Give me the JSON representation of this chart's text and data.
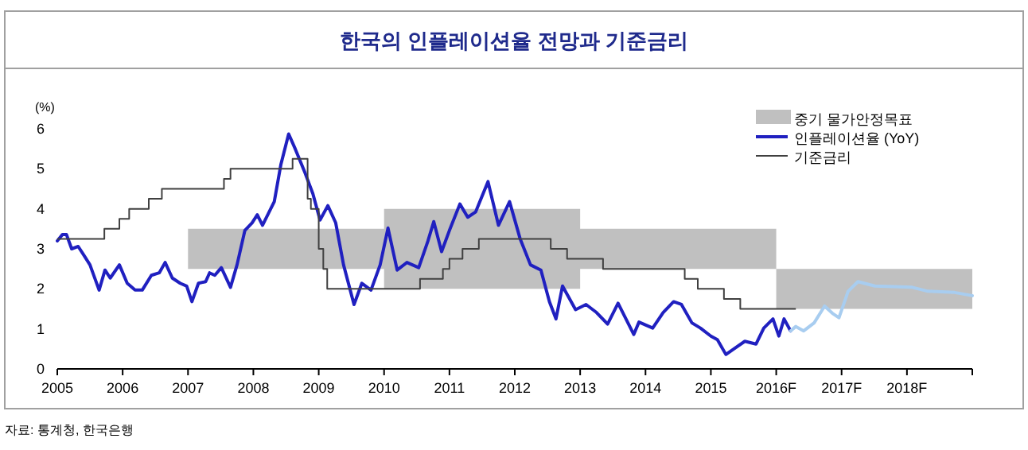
{
  "chart_data": {
    "type": "line",
    "title": "한국의 인플레이션율 전망과 기준금리",
    "ylabel": "(%)",
    "annotations": [
      "자료: 통계청, 한국은행"
    ],
    "xlim": [
      2005,
      2019
    ],
    "xticks": [
      2005,
      2006,
      2007,
      2008,
      2009,
      2010,
      2011,
      2012,
      2013,
      2014,
      2015,
      {
        "value": 2016,
        "label": "2016F"
      },
      {
        "value": 2017,
        "label": "2017F"
      },
      {
        "value": 2018,
        "label": "2018F"
      },
      {
        "value": 2019,
        "label": null
      }
    ],
    "ylim": [
      0,
      6
    ],
    "yticks": [
      0,
      1,
      2,
      3,
      4,
      5,
      6
    ],
    "grid": false,
    "legend": "top right",
    "series": [
      {
        "name": "중기 물가안정목표",
        "type": "line",
        "color": "#c0c0c0",
        "x": [
          2007,
          2010,
          2010,
          2013,
          2013,
          2016,
          2016,
          2019
        ],
        "values": [
          null,
          null,
          null,
          null,
          null,
          null,
          null,
          null
        ],
        "lower": [
          2.5,
          2.5,
          2,
          2,
          2.5,
          2.5,
          1.5,
          1.5
        ],
        "upper": [
          3.5,
          3.5,
          4,
          4,
          3.5,
          3.5,
          2.5,
          2.5
        ]
      },
      {
        "name": "인플레이션율 (YoY)",
        "color": "#2020c0",
        "x": [
          2005.0,
          2005.08,
          2005.14,
          2005.22,
          2005.32,
          2005.4,
          2005.5,
          2005.64,
          2005.73,
          2005.81,
          2005.95,
          2006.07,
          2006.19,
          2006.3,
          2006.44,
          2006.56,
          2006.65,
          2006.76,
          2006.88,
          2006.98,
          2007.06,
          2007.16,
          2007.27,
          2007.33,
          2007.41,
          2007.51,
          2007.65,
          2007.75,
          2007.87,
          2007.98,
          2008.06,
          2008.14,
          2008.22,
          2008.32,
          2008.42,
          2008.54,
          2008.64,
          2008.79,
          2008.91,
          2009.02,
          2009.14,
          2009.26,
          2009.38,
          2009.54,
          2009.66,
          2009.8,
          2009.94,
          2010.06,
          2010.2,
          2010.35,
          2010.53,
          2010.67,
          2010.76,
          2010.88,
          2011.0,
          2011.16,
          2011.28,
          2011.4,
          2011.59,
          2011.75,
          2011.92,
          2012.08,
          2012.24,
          2012.4,
          2012.53,
          2012.63,
          2012.73,
          2012.93,
          2013.09,
          2013.25,
          2013.42,
          2013.58,
          2013.82,
          2013.9,
          2014.11,
          2014.27,
          2014.43,
          2014.55,
          2014.71,
          2014.84,
          2015.0,
          2015.1,
          2015.23,
          2015.36,
          2015.52,
          2015.69,
          2015.81,
          2015.95,
          2016.04,
          2016.12,
          2016.22
        ],
        "values": [
          3.2,
          3.36,
          3.36,
          3.0,
          3.06,
          2.86,
          2.6,
          1.97,
          2.47,
          2.27,
          2.6,
          2.14,
          1.97,
          1.97,
          2.34,
          2.4,
          2.66,
          2.27,
          2.14,
          2.07,
          1.68,
          2.14,
          2.18,
          2.4,
          2.34,
          2.53,
          2.04,
          2.6,
          3.46,
          3.65,
          3.85,
          3.59,
          3.85,
          4.18,
          5.1,
          5.87,
          5.5,
          4.9,
          4.38,
          3.72,
          4.08,
          3.65,
          2.6,
          1.61,
          2.14,
          1.97,
          2.6,
          3.52,
          2.47,
          2.66,
          2.53,
          3.19,
          3.68,
          2.93,
          3.46,
          4.12,
          3.79,
          3.92,
          4.68,
          3.59,
          4.18,
          3.26,
          2.6,
          2.47,
          1.68,
          1.25,
          2.07,
          1.48,
          1.61,
          1.41,
          1.12,
          1.64,
          0.86,
          1.17,
          1.02,
          1.41,
          1.68,
          1.61,
          1.15,
          1.02,
          0.82,
          0.73,
          0.36,
          0.51,
          0.69,
          0.62,
          1.02,
          1.25,
          0.82,
          1.25,
          0.95
        ]
      },
      {
        "color": "#a8cdf0",
        "x": [
          2016.22,
          2016.3,
          2016.42,
          2016.58,
          2016.74,
          2016.86,
          2016.96,
          2017.1,
          2017.25,
          2017.51,
          2018.08,
          2018.32,
          2018.73,
          2019.0
        ],
        "values": [
          0.95,
          1.06,
          0.95,
          1.15,
          1.57,
          1.39,
          1.28,
          1.94,
          2.18,
          2.07,
          2.04,
          1.94,
          1.91,
          1.83
        ]
      },
      {
        "name": "기준금리",
        "type": "step",
        "color": "#404040",
        "x": [
          2005.0,
          2005.72,
          2005.95,
          2006.1,
          2006.4,
          2006.6,
          2007.55,
          2007.65,
          2008.6,
          2008.83,
          2008.88,
          2009.0,
          2009.07,
          2009.13,
          2010.55,
          2010.9,
          2011.0,
          2011.2,
          2011.45,
          2012.55,
          2012.8,
          2013.35,
          2014.6,
          2014.8,
          2015.2,
          2015.45,
          2016.3
        ],
        "values": [
          3.25,
          3.5,
          3.75,
          4.0,
          4.25,
          4.5,
          4.75,
          5.0,
          5.25,
          4.25,
          4.0,
          3.0,
          2.5,
          2.0,
          2.25,
          2.5,
          2.75,
          3.0,
          3.25,
          3.0,
          2.75,
          2.5,
          2.25,
          2.0,
          1.75,
          1.5,
          1.5
        ]
      }
    ]
  }
}
